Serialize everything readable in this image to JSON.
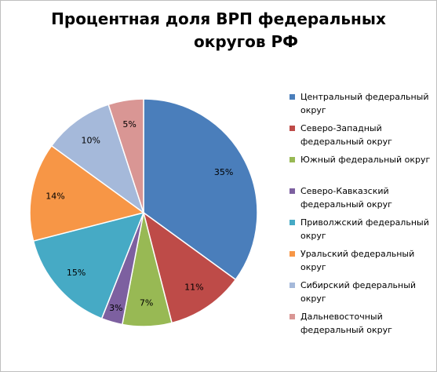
{
  "chart_data": {
    "type": "pie",
    "title": "Процентная доля ВРП федеральных округов РФ",
    "title_lines": [
      "Процентная доля ВРП федеральных",
      "округов РФ"
    ],
    "slices": [
      {
        "name": "Центральный федеральный округ",
        "label_lines": [
          "Центральный федеральный",
          "округ"
        ],
        "value": 35,
        "label": "35%",
        "color": "#4a7ebb"
      },
      {
        "name": "Северо-Западный федеральный округ",
        "label_lines": [
          "Северо-Западный",
          "федеральный округ"
        ],
        "value": 11,
        "label": "11%",
        "color": "#be4b48"
      },
      {
        "name": "Южный федеральный округ",
        "label_lines": [
          "Южный федеральный округ"
        ],
        "value": 7,
        "label": "7%",
        "color": "#98b954"
      },
      {
        "name": "Северо-Кавказский федеральный округ",
        "label_lines": [
          "Северо-Кавказский",
          "федеральный округ"
        ],
        "value": 3,
        "label": "3%",
        "color": "#7d60a0"
      },
      {
        "name": "Приволжский федеральный округ",
        "label_lines": [
          "Приволжский федеральный",
          "округ"
        ],
        "value": 15,
        "label": "15%",
        "color": "#46aac5"
      },
      {
        "name": "Уральский федеральный округ",
        "label_lines": [
          "Уральский федеральный",
          "округ"
        ],
        "value": 14,
        "label": "14%",
        "color": "#f79646"
      },
      {
        "name": "Сибирский федеральный округ",
        "label_lines": [
          "Сибирский федеральный",
          "округ"
        ],
        "value": 10,
        "label": "10%",
        "color": "#a5b9da"
      },
      {
        "name": "Дальневосточный федеральный округ",
        "label_lines": [
          "Дальневосточный",
          "федеральный округ"
        ],
        "value": 5,
        "label": "5%",
        "color": "#d99694"
      }
    ],
    "legend_position": "right"
  }
}
